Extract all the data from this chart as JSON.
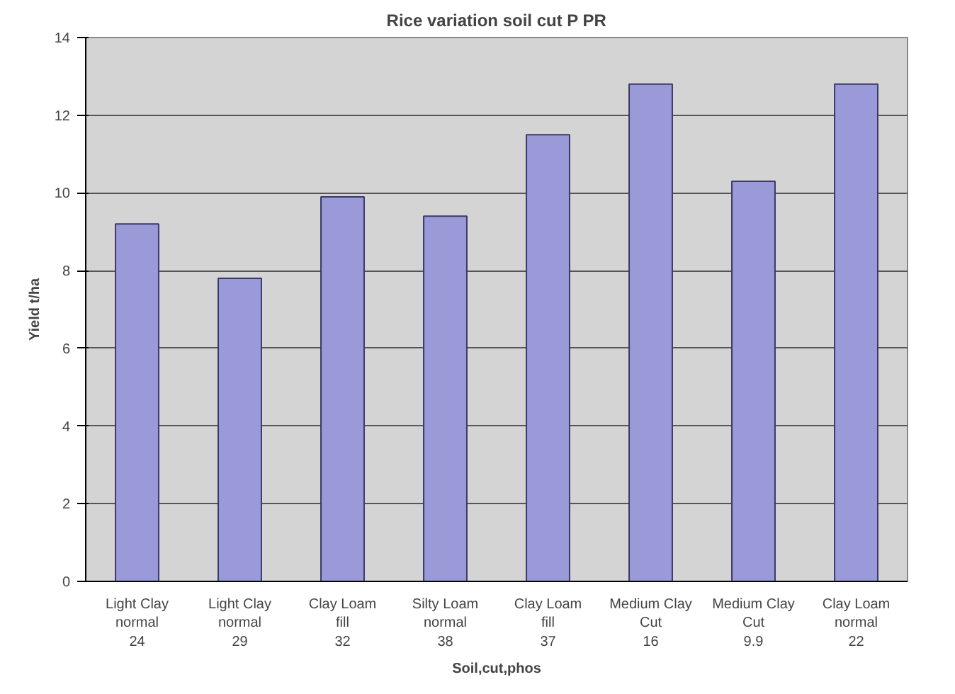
{
  "chart_data": {
    "type": "bar",
    "title": "Rice variation soil cut P PR",
    "xlabel": "Soil,cut,phos",
    "ylabel": "Yield t/ha",
    "categories": [
      "Light Clay\nnormal\n24",
      "Light Clay\nnormal\n29",
      "Clay Loam\nfill\n32",
      "Silty Loam\nnormal\n38",
      "Clay Loam\nfill\n37",
      "Medium Clay\nCut\n16",
      "Medium Clay\nCut\n9.9",
      "Clay Loam\nnormal\n22"
    ],
    "values": [
      9.2,
      7.8,
      9.9,
      9.4,
      11.5,
      12.8,
      10.3,
      12.8
    ],
    "color": "#9a9ad8",
    "ylim": [
      0,
      14
    ],
    "yticks": [
      0,
      2,
      4,
      6,
      8,
      10,
      12,
      14
    ],
    "grid": "y"
  }
}
